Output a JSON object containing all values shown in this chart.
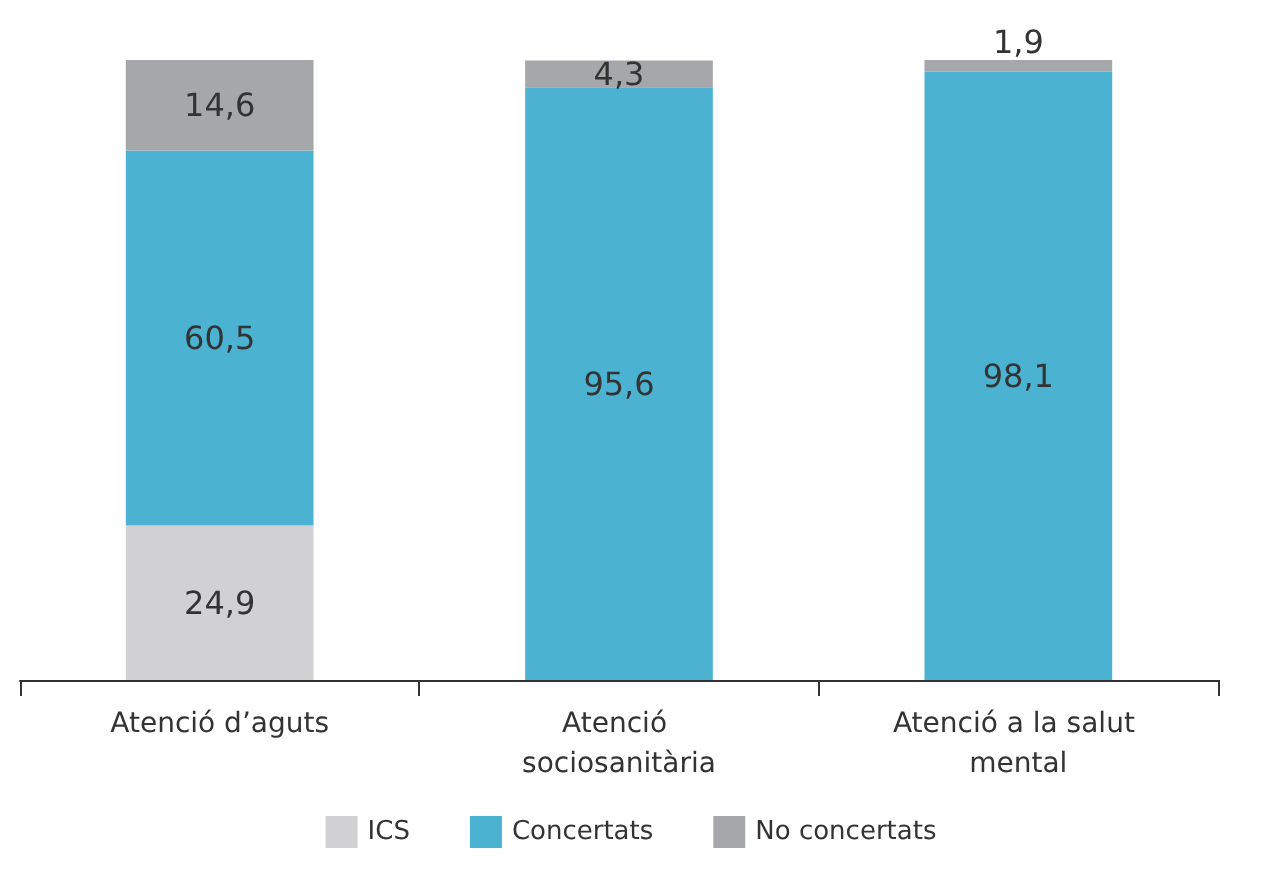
{
  "chart_data": {
    "type": "bar",
    "stacked": true,
    "categories": [
      "Atenció d’aguts",
      "Atenció sociosanitària",
      "Atenció a la salut mental"
    ],
    "series": [
      {
        "name": "ICS",
        "color": "#d1d1d3",
        "values": [
          24.9,
          null,
          null
        ],
        "value_labels": [
          "24,9",
          null,
          null
        ]
      },
      {
        "name": "Concertats",
        "color": "#4bb3d1",
        "values": [
          60.5,
          95.6,
          98.1
        ],
        "value_labels": [
          "60,5",
          "95,6",
          "98,1"
        ]
      },
      {
        "name": "No concertats",
        "color": "#a6a7aa",
        "values": [
          14.6,
          4.3,
          1.9
        ],
        "value_labels": [
          "14,6",
          "4,3",
          "1,9"
        ]
      }
    ],
    "legend": "bottom"
  }
}
